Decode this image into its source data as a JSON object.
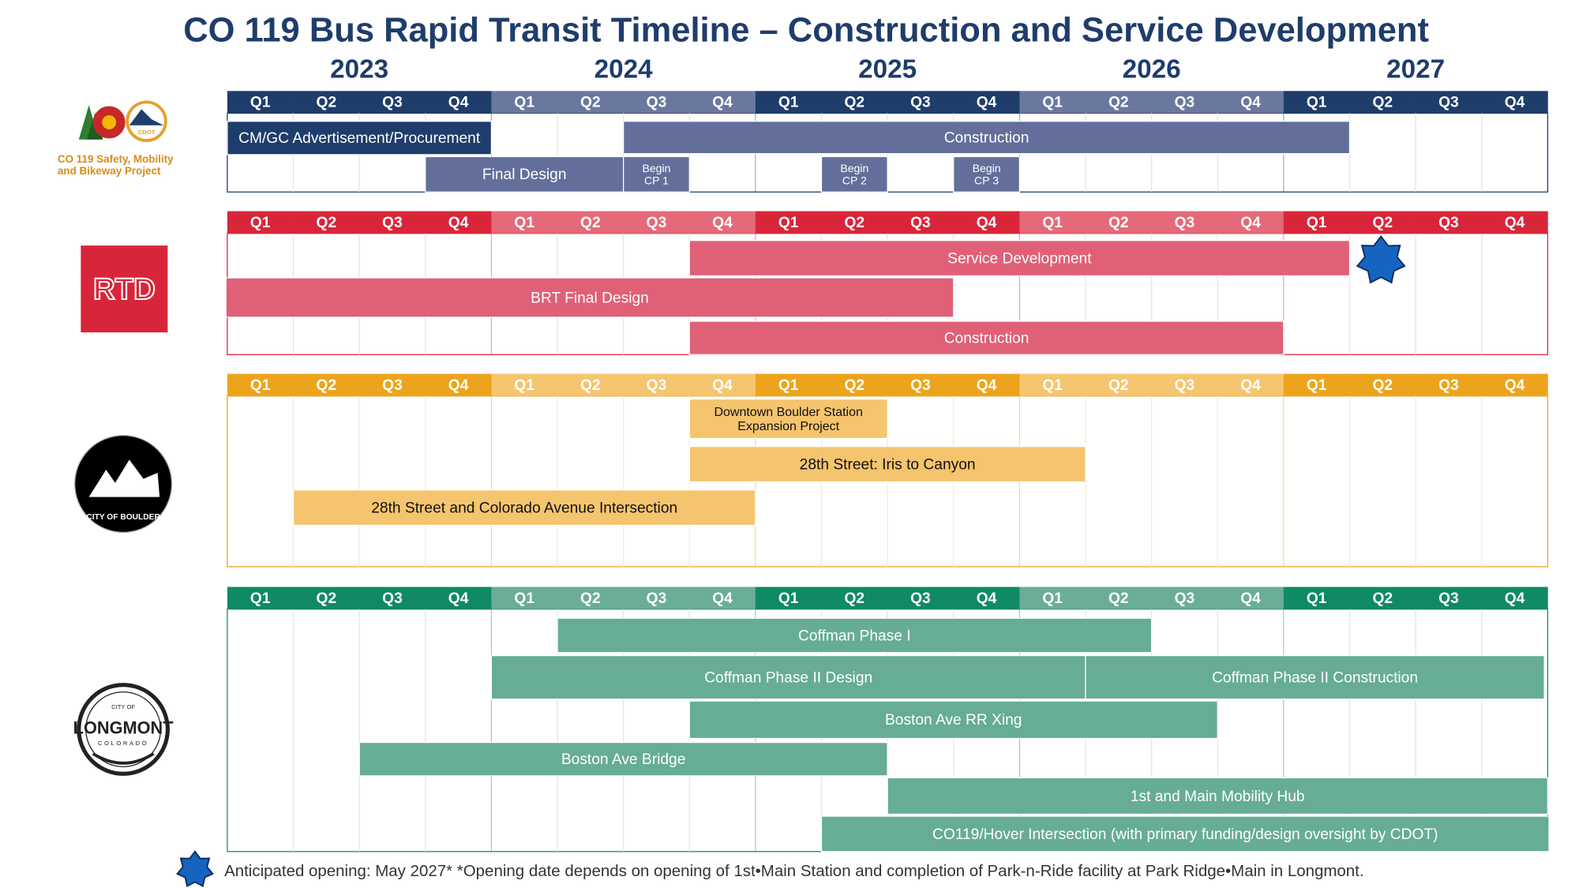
{
  "title": "CO 119 Bus Rapid Transit Timeline – Construction and Service Development",
  "years": [
    "2023",
    "2024",
    "2025",
    "2026",
    "2027"
  ],
  "quarters": [
    "Q1",
    "Q2",
    "Q3",
    "Q4"
  ],
  "sections": [
    {
      "logo": {
        "badge": "CDOT",
        "caption": [
          "CO 119 Safety, Mobility",
          "and Bikeway Project"
        ]
      },
      "tasks": [
        {
          "label": [
            "CM/GC Advertisement/Procurement"
          ]
        },
        {
          "label": [
            "Construction"
          ]
        },
        {
          "label": [
            "Final Design"
          ]
        },
        {
          "label": [
            "Begin",
            "CP 1"
          ]
        },
        {
          "label": [
            "Begin",
            "CP 2"
          ]
        },
        {
          "label": [
            "Begin",
            "CP 3"
          ]
        }
      ]
    },
    {
      "logo": {
        "text": "RTD"
      },
      "tasks": [
        {
          "label": [
            "Service Development"
          ]
        },
        {
          "label": [
            "BRT Final Design"
          ]
        },
        {
          "label": [
            "Construction"
          ]
        }
      ]
    },
    {
      "logo": {
        "text": "CITY OF BOULDER"
      },
      "tasks": [
        {
          "label": [
            "Downtown Boulder Station",
            "Expansion Project"
          ]
        },
        {
          "label": [
            "28th Street: Iris to Canyon"
          ]
        },
        {
          "label": [
            "28th Street and Colorado Avenue Intersection"
          ]
        }
      ]
    },
    {
      "logo": {
        "top": "CITY OF",
        "text": "LONGMONT",
        "bottom": "COLORADO"
      },
      "tasks": [
        {
          "label": [
            "Coffman Phase I"
          ]
        },
        {
          "label": [
            "Coffman Phase II Design"
          ]
        },
        {
          "label": [
            "Coffman Phase II Construction"
          ]
        },
        {
          "label": [
            "Boston Ave RR Xing"
          ]
        },
        {
          "label": [
            "Boston Ave Bridge"
          ]
        },
        {
          "label": [
            "1st and Main Mobility Hub"
          ]
        },
        {
          "label": [
            "CO119/Hover Intersection (with primary funding/design oversight by CDOT)"
          ]
        }
      ]
    }
  ],
  "footnote": "Anticipated opening: May 2027*  *Opening date depends on opening of 1st•Main Station and completion of Park-n-Ride facility at Park Ridge•Main in Longmont."
}
